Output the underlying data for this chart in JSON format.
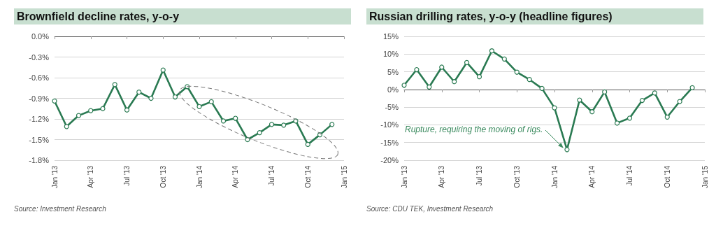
{
  "chart_data": [
    {
      "type": "line",
      "title": "Brownfield decline rates, y-o-y",
      "categories": [
        "Jan '13",
        null,
        null,
        "Apr '13",
        null,
        null,
        "Jul '13",
        null,
        null,
        "Oct '13",
        null,
        null,
        "Jan '14",
        null,
        null,
        "Apr '14",
        null,
        null,
        "Jul '14",
        null,
        null,
        "Oct '14",
        null,
        null,
        "Jan '15"
      ],
      "series": [
        {
          "color": "#2a7a52",
          "values": [
            -0.94,
            -1.31,
            -1.15,
            -1.08,
            -1.05,
            -0.7,
            -1.07,
            -0.81,
            -0.9,
            -0.49,
            -0.88,
            -0.73,
            -1.02,
            -0.95,
            -1.23,
            -1.19,
            -1.5,
            -1.4,
            -1.28,
            -1.29,
            -1.23,
            -1.57,
            -1.43,
            -1.28,
            null
          ]
        }
      ],
      "ylim": [
        -1.8,
        0
      ],
      "yticks": [
        {
          "value": 0,
          "label": "0.0%"
        },
        {
          "value": -0.3,
          "label": "-0.3%"
        },
        {
          "value": -0.6,
          "label": "-0.6%"
        },
        {
          "value": -0.9,
          "label": "-0.9%"
        },
        {
          "value": -1.2,
          "label": "-1.2%"
        },
        {
          "value": -1.5,
          "label": "-1.5%"
        },
        {
          "value": -1.8,
          "label": "-1.8%"
        }
      ],
      "grid": "y",
      "marker": "circle",
      "annotations": [
        "Source: Investment Research"
      ]
    },
    {
      "type": "line",
      "title": "Russian drilling rates, y-o-y (headline figures)",
      "categories": [
        "Jan '13",
        null,
        null,
        "Apr '13",
        null,
        null,
        "Jul '13",
        null,
        null,
        "Oct '13",
        null,
        null,
        "Jan '14",
        null,
        null,
        "Apr '14",
        null,
        null,
        "Jul '14",
        null,
        null,
        "Oct '14",
        null,
        null,
        "Jan '15"
      ],
      "series": [
        {
          "color": "#2a7a52",
          "values": [
            1.2,
            5.6,
            0.7,
            6.3,
            2.2,
            7.6,
            3.6,
            10.9,
            8.6,
            4.9,
            2.8,
            0.3,
            -5.2,
            -17.0,
            -3.0,
            -6.3,
            -0.7,
            -9.5,
            -8.1,
            -3.1,
            -1.0,
            -7.8,
            -3.4,
            0.5,
            null
          ]
        }
      ],
      "ylim": [
        -20,
        15
      ],
      "yticks": [
        {
          "value": 15,
          "label": "15%"
        },
        {
          "value": 10,
          "label": "10%"
        },
        {
          "value": 5,
          "label": "5%"
        },
        {
          "value": 0,
          "label": "0%"
        },
        {
          "value": -5,
          "label": "-5%"
        },
        {
          "value": -10,
          "label": "-10%"
        },
        {
          "value": -15,
          "label": "-15%"
        },
        {
          "value": -20,
          "label": "-20%"
        }
      ],
      "grid": "y",
      "marker": "circle",
      "annotations": [
        "Rupture, requiring the moving of rigs.",
        "Source: CDU TEK, Investment Research"
      ]
    }
  ]
}
